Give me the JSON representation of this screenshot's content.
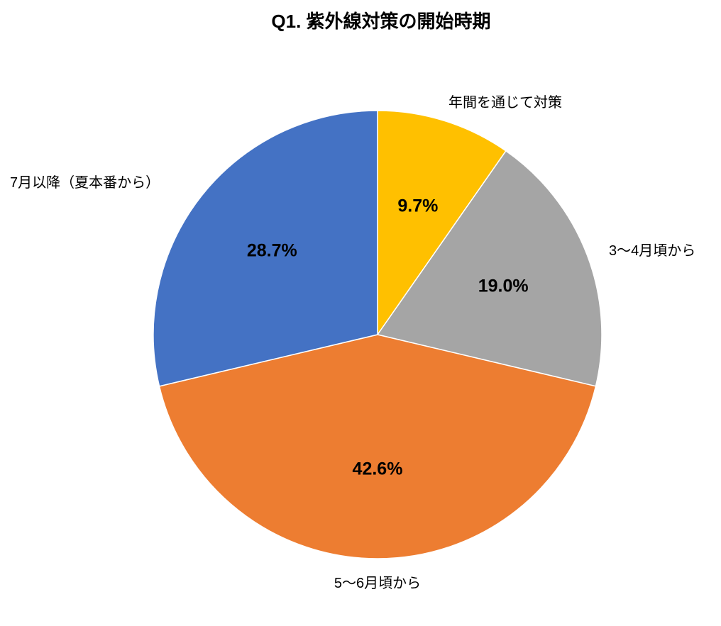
{
  "title": "Q1. 紫外線対策の開始時期",
  "chart_data": {
    "type": "pie",
    "title": "Q1. 紫外線対策の開始時期",
    "unit": "%",
    "start_angle_deg": 0,
    "direction": "clockwise",
    "legend_position": "none",
    "labels_outside": true,
    "values_inside": true,
    "background_color": "#ffffff",
    "categories": [
      "年間を通じて対策",
      "3〜4月頃から",
      "5〜6月頃から",
      "7月以降（夏本番から）"
    ],
    "values": [
      9.7,
      19.0,
      42.6,
      28.7
    ],
    "slices": [
      {
        "label": "年間を通じて対策",
        "value": 9.7,
        "pct_label": "9.7%",
        "color": "#FFC000"
      },
      {
        "label": "3〜4月頃から",
        "value": 19.0,
        "pct_label": "19.0%",
        "color": "#A5A5A5"
      },
      {
        "label": "5〜6月頃から",
        "value": 42.6,
        "pct_label": "42.6%",
        "color": "#ED7D31"
      },
      {
        "label": "7月以降（夏本番から）",
        "value": 28.7,
        "pct_label": "28.7%",
        "color": "#4472C4"
      }
    ]
  }
}
